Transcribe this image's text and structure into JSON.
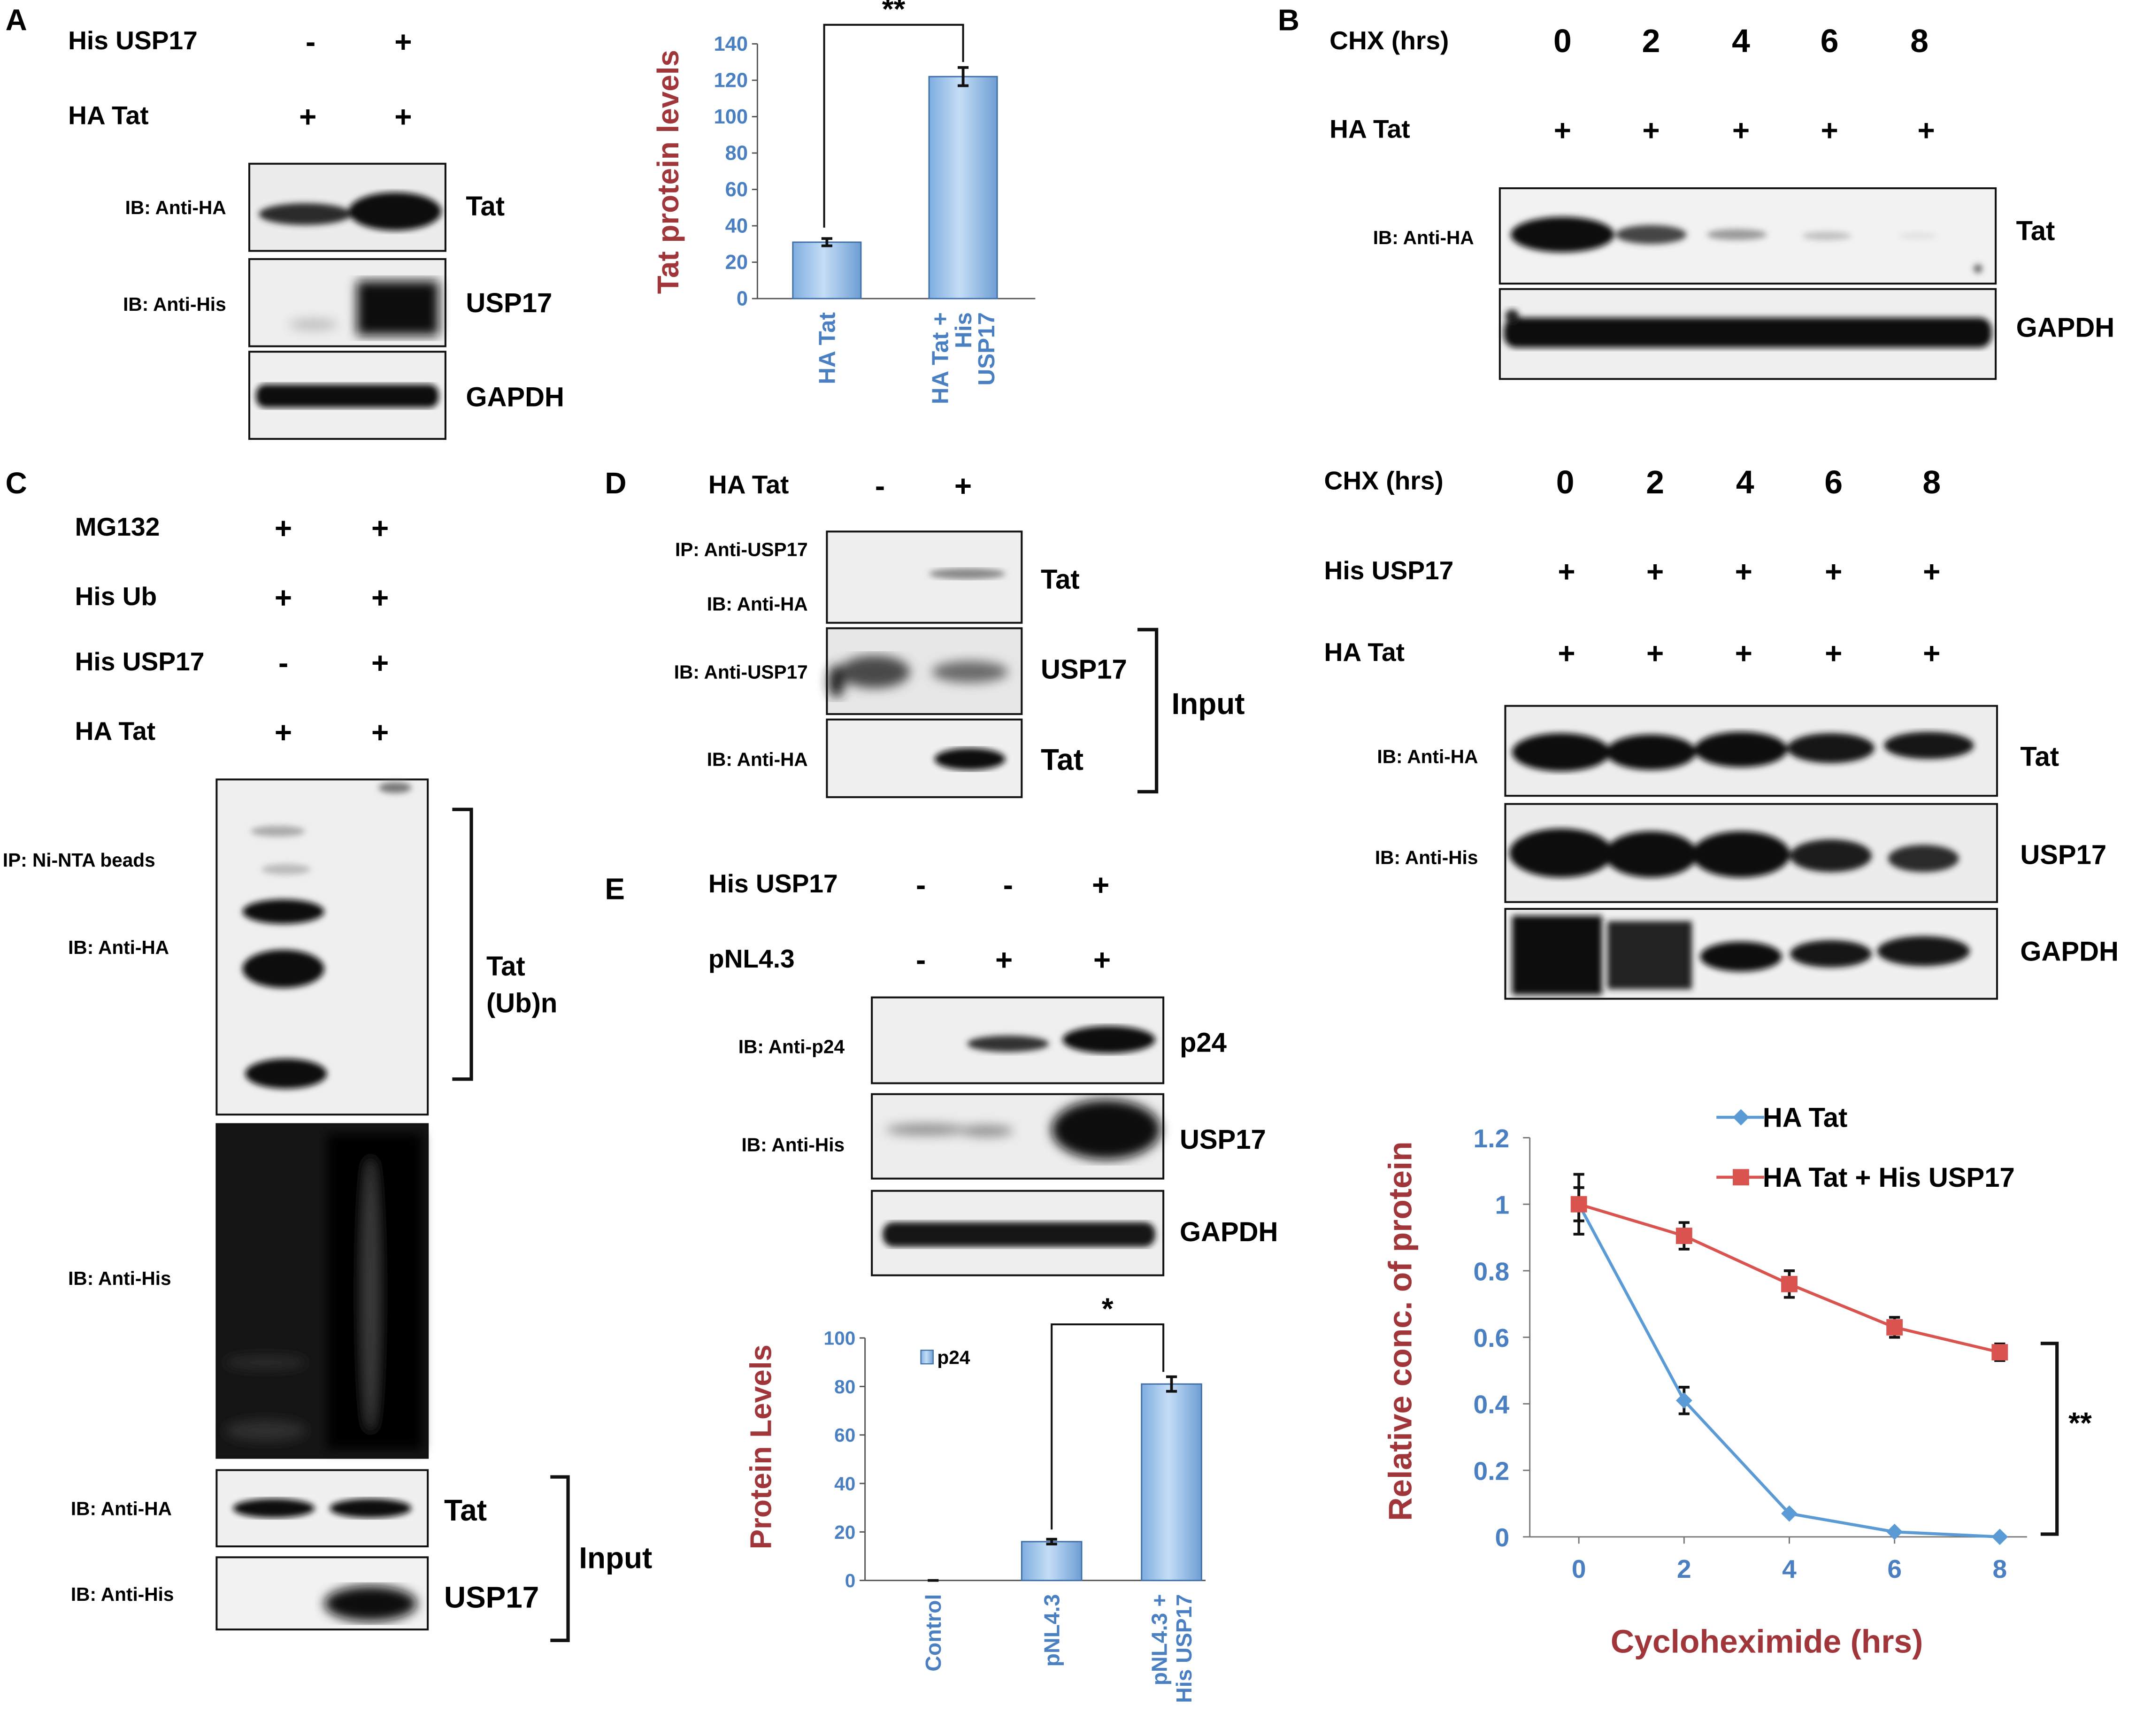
{
  "colors": {
    "blue": "#4A7FC1",
    "red": "#A0353A",
    "bar_blue": "#9DC3EA",
    "line_blue": "#5B9BD5",
    "line_red": "#D9534F"
  },
  "panel_labels": {
    "a": "A",
    "b": "B",
    "c": "C",
    "d": "D",
    "e": "E"
  },
  "panelA": {
    "treat1_name": "His USP17",
    "treat1_vals": [
      "-",
      "+"
    ],
    "treat2_name": "HA Tat",
    "treat2_vals": [
      "+",
      "+"
    ],
    "blots": [
      {
        "ib": "IB: Anti-HA",
        "label": "Tat"
      },
      {
        "ib": "IB: Anti-His",
        "label": "USP17"
      },
      {
        "ib": "",
        "label": "GAPDH"
      }
    ],
    "chart_data": {
      "type": "bar",
      "ylabel": "Tat protein levels",
      "ylim": [
        0,
        140
      ],
      "yticks": [
        "0",
        "20",
        "40",
        "60",
        "80",
        "100",
        "120",
        "140"
      ],
      "categories": [
        "HA Tat",
        "HA Tat + His USP17"
      ],
      "category_lines": [
        [
          "HA Tat"
        ],
        [
          "HA Tat +",
          "His",
          "USP17"
        ]
      ],
      "values": [
        31,
        122
      ],
      "errors": [
        2,
        5
      ],
      "significance": "**"
    }
  },
  "panelB": {
    "top": {
      "time_name": "CHX (hrs)",
      "times": [
        "0",
        "2",
        "4",
        "6",
        "8"
      ],
      "rows": [
        {
          "name": "HA Tat",
          "vals": [
            "+",
            "+",
            "+",
            "+",
            "+"
          ]
        }
      ],
      "blots": [
        {
          "ib": "IB: Anti-HA",
          "label": "Tat"
        },
        {
          "ib": "",
          "label": "GAPDH"
        }
      ]
    },
    "bottom": {
      "time_name": "CHX (hrs)",
      "times": [
        "0",
        "2",
        "4",
        "6",
        "8"
      ],
      "rows": [
        {
          "name": "His USP17",
          "vals": [
            "+",
            "+",
            "+",
            "+",
            "+"
          ]
        },
        {
          "name": "HA Tat",
          "vals": [
            "+",
            "+",
            "+",
            "+",
            "+"
          ]
        }
      ],
      "blots": [
        {
          "ib": "IB: Anti-HA",
          "label": "Tat"
        },
        {
          "ib": "IB: Anti-His",
          "label": "USP17"
        },
        {
          "ib": "",
          "label": "GAPDH"
        }
      ]
    },
    "chart_data": {
      "type": "line",
      "xlabel": "Cycloheximide (hrs)",
      "ylabel": "Relative conc. of protein",
      "x": [
        0,
        2,
        4,
        6,
        8
      ],
      "xticks": [
        "0",
        "2",
        "4",
        "6",
        "8"
      ],
      "ylim": [
        0,
        1.2
      ],
      "yticks": [
        "0",
        "0.2",
        "0.4",
        "0.6",
        "0.8",
        "1",
        "1.2"
      ],
      "series": [
        {
          "name": "HA Tat",
          "values": [
            1.0,
            0.41,
            0.07,
            0.015,
            0.0
          ],
          "errors": [
            0.09,
            0.04,
            0.0,
            0.0,
            0.0
          ]
        },
        {
          "name": "HA Tat + His USP17",
          "values": [
            1.0,
            0.905,
            0.76,
            0.63,
            0.555
          ],
          "errors": [
            0.05,
            0.04,
            0.04,
            0.03,
            0.025
          ]
        }
      ],
      "significance": "**"
    }
  },
  "panelC": {
    "rows": [
      {
        "name": "MG132",
        "vals": [
          "+",
          "+"
        ]
      },
      {
        "name": "His Ub",
        "vals": [
          "+",
          "+"
        ]
      },
      {
        "name": "His USP17",
        "vals": [
          "-",
          "+"
        ]
      },
      {
        "name": "HA Tat",
        "vals": [
          "+",
          "+"
        ]
      }
    ],
    "ip_label": "IP: Ni-NTA beads",
    "ib_ha": "IB: Anti-HA",
    "ib_his": "IB: Anti-His",
    "ub_label_1": "Tat",
    "ub_label_2": "(Ub)n",
    "input_blots": [
      {
        "ib": "IB: Anti-HA",
        "label": "Tat"
      },
      {
        "ib": "IB: Anti-His",
        "label": "USP17"
      }
    ],
    "input_label": "Input"
  },
  "panelD": {
    "treat_name": "HA Tat",
    "treat_vals": [
      "-",
      "+"
    ],
    "ip_line1": "IP: Anti-USP17",
    "ip_line2": "IB: Anti-HA",
    "blot1_label": "Tat",
    "input_blots": [
      {
        "ib": "IB: Anti-USP17",
        "label": "USP17"
      },
      {
        "ib": "IB: Anti-HA",
        "label": "Tat"
      }
    ],
    "input_label": "Input"
  },
  "panelE": {
    "rows": [
      {
        "name": "His USP17",
        "vals": [
          "-",
          "-",
          "+"
        ]
      },
      {
        "name": "pNL4.3",
        "vals": [
          "-",
          "+",
          "+"
        ]
      }
    ],
    "blots": [
      {
        "ib": "IB: Anti-p24",
        "label": "p24"
      },
      {
        "ib": "IB: Anti-His",
        "label": "USP17"
      },
      {
        "ib": "",
        "label": "GAPDH"
      }
    ],
    "chart_data": {
      "type": "bar",
      "ylabel": "Protein Levels",
      "ylim": [
        0,
        100
      ],
      "yticks": [
        "0",
        "20",
        "40",
        "60",
        "80",
        "100"
      ],
      "categories": [
        "Control",
        "pNL4.3",
        "pNL4.3 + His USP17"
      ],
      "category_lines": [
        [
          "Control"
        ],
        [
          "pNL4.3"
        ],
        [
          "pNL4.3 +",
          "His USP17"
        ]
      ],
      "values": [
        0,
        16,
        81
      ],
      "errors": [
        0,
        1,
        3
      ],
      "legend": "p24",
      "significance": "*"
    }
  }
}
